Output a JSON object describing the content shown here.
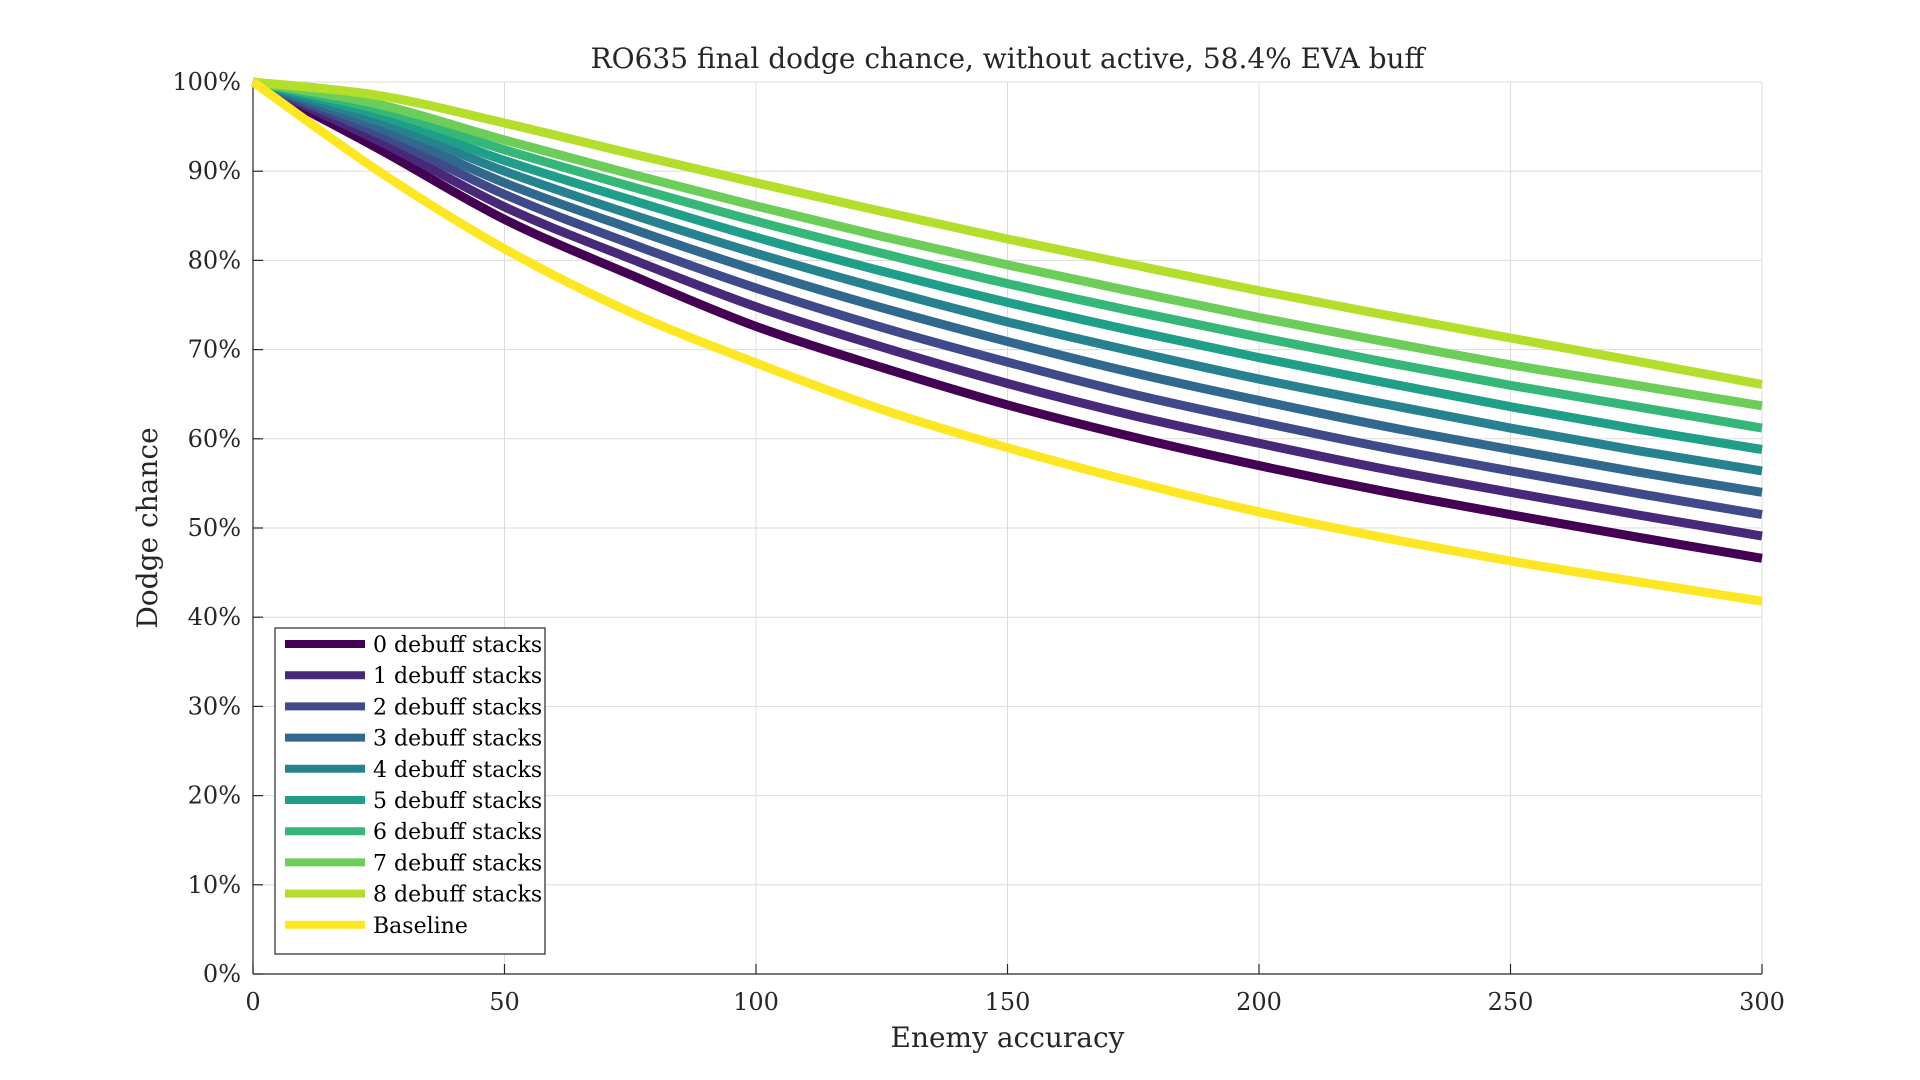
{
  "chart_data": {
    "type": "line",
    "title": "RO635 final dodge chance, without active, 58.4% EVA buff",
    "xlabel": "Enemy accuracy",
    "ylabel": "Dodge chance",
    "xlim": [
      0,
      300
    ],
    "ylim": [
      0,
      100
    ],
    "x_ticks": [
      "0",
      "50",
      "100",
      "150",
      "200",
      "250",
      "300"
    ],
    "y_ticks": [
      "0%",
      "10%",
      "20%",
      "30%",
      "40%",
      "50%",
      "60%",
      "70%",
      "80%",
      "90%",
      "100%"
    ],
    "grid": true,
    "legend_position": "bottom-left",
    "x": [
      0,
      25,
      50,
      75,
      100,
      125,
      150,
      175,
      200,
      225,
      250,
      275,
      300
    ],
    "series": [
      {
        "name": "0 debuff stacks",
        "color": "#440154",
        "values": [
          100,
          92.5,
          84.6,
          78.4,
          72.6,
          68.0,
          63.8,
          60.2,
          57.0,
          54.1,
          51.5,
          49.0,
          46.6
        ]
      },
      {
        "name": "1 debuff stacks",
        "color": "#482878",
        "values": [
          100,
          93.4,
          86.0,
          80.2,
          74.8,
          70.3,
          66.2,
          62.6,
          59.5,
          56.6,
          54.0,
          51.5,
          49.1
        ]
      },
      {
        "name": "2 debuff stacks",
        "color": "#3E4A89",
        "values": [
          100,
          94.2,
          87.4,
          81.9,
          76.9,
          72.5,
          68.6,
          65.0,
          61.9,
          59.0,
          56.4,
          53.9,
          51.5
        ]
      },
      {
        "name": "3 debuff stacks",
        "color": "#31688E",
        "values": [
          100,
          94.9,
          88.7,
          83.6,
          78.9,
          74.7,
          70.9,
          67.4,
          64.3,
          61.4,
          58.8,
          56.3,
          54.0
        ]
      },
      {
        "name": "4 debuff stacks",
        "color": "#26828E",
        "values": [
          100,
          95.6,
          90.0,
          85.2,
          80.8,
          76.8,
          73.1,
          69.8,
          66.7,
          63.9,
          61.2,
          58.7,
          56.4
        ]
      },
      {
        "name": "5 debuff stacks",
        "color": "#1F9E89",
        "values": [
          100,
          96.3,
          91.2,
          86.8,
          82.6,
          78.8,
          75.3,
          72.1,
          69.1,
          66.3,
          63.6,
          61.1,
          58.8
        ]
      },
      {
        "name": "6 debuff stacks",
        "color": "#35B779",
        "values": [
          100,
          96.9,
          92.4,
          88.3,
          84.4,
          80.8,
          77.4,
          74.3,
          71.4,
          68.6,
          66.0,
          63.6,
          61.2
        ]
      },
      {
        "name": "7 debuff stacks",
        "color": "#6DCD59",
        "values": [
          100,
          97.5,
          93.5,
          89.7,
          86.1,
          82.7,
          79.5,
          76.5,
          73.6,
          70.9,
          68.3,
          66.0,
          63.7
        ]
      },
      {
        "name": "8 debuff stacks",
        "color": "#B4DE2C",
        "values": [
          100,
          98.5,
          95.4,
          92.0,
          88.7,
          85.5,
          82.4,
          79.5,
          76.6,
          73.9,
          71.3,
          68.7,
          66.1
        ]
      },
      {
        "name": "Baseline",
        "color": "#FDE725",
        "values": [
          100,
          90.0,
          81.3,
          74.2,
          68.5,
          63.3,
          59.0,
          55.2,
          51.8,
          48.9,
          46.3,
          44.0,
          41.8
        ]
      }
    ]
  }
}
